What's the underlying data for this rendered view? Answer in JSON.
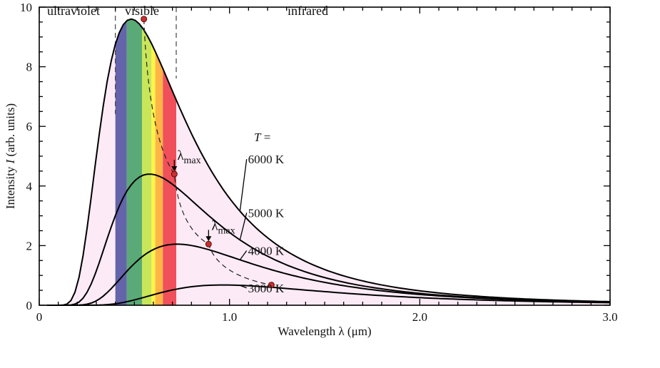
{
  "chart_data": {
    "type": "line",
    "title": "",
    "xlabel": "Wavelength  λ  (μm)",
    "ylabel_prefix": "Intensity  ",
    "ylabel_symbol": "I",
    "ylabel_suffix": "  (arb. units)",
    "xlim": [
      0,
      3.0
    ],
    "ylim": [
      0,
      10
    ],
    "x_ticks": [
      0,
      1.0,
      2.0,
      3.0
    ],
    "x_tick_labels": [
      "0",
      "1.0",
      "2.0",
      "3.0"
    ],
    "y_ticks": [
      0,
      2,
      4,
      6,
      8,
      10
    ],
    "y_tick_labels": [
      "0",
      "2",
      "4",
      "6",
      "8",
      "10"
    ],
    "x_minor_step": 0.1,
    "y_minor_step": 0.5,
    "regions": [
      {
        "label": "ultraviolet",
        "x_range": [
          0,
          0.4
        ]
      },
      {
        "label": "visible",
        "x_range": [
          0.4,
          0.7
        ]
      },
      {
        "label": "infrared",
        "x_range": [
          0.7,
          3.0
        ]
      }
    ],
    "visible_bands": [
      {
        "x_range": [
          0.4,
          0.46
        ],
        "color": "#6464aa"
      },
      {
        "x_range": [
          0.46,
          0.54
        ],
        "color": "#5aaa78"
      },
      {
        "x_range": [
          0.54,
          0.59
        ],
        "color": "#c8e65a"
      },
      {
        "x_range": [
          0.59,
          0.61
        ],
        "color": "#fff546"
      },
      {
        "x_range": [
          0.61,
          0.65
        ],
        "color": "#ffb446"
      },
      {
        "x_range": [
          0.65,
          0.72
        ],
        "color": "#f0505a"
      }
    ],
    "fill_color": "#fcebf6",
    "legend_title_symbol": "T",
    "legend_title_suffix": " =",
    "series": [
      {
        "name": "6000 K",
        "temperature_K": 6000,
        "peak": {
          "x": 0.55,
          "y": 9.6
        },
        "label_at": {
          "x": 1.09,
          "y": 4.9
        }
      },
      {
        "name": "5000 K",
        "temperature_K": 5000,
        "peak": {
          "x": 0.71,
          "y": 4.4
        },
        "label_at": {
          "x": 1.09,
          "y": 3.1
        }
      },
      {
        "name": "4000 K",
        "temperature_K": 4000,
        "peak": {
          "x": 0.89,
          "y": 2.05
        },
        "label_at": {
          "x": 1.09,
          "y": 1.83
        }
      },
      {
        "name": "3000 K",
        "temperature_K": 3000,
        "peak": {
          "x": 1.22,
          "y": 0.68
        },
        "label_at": {
          "x": 1.09,
          "y": 0.58
        }
      }
    ],
    "annotations": [
      {
        "base": "λ",
        "sub": "max",
        "points_to_peak": "5000 K"
      },
      {
        "base": "λ",
        "sub": "max",
        "points_to_peak": "4000 K"
      }
    ],
    "wien_locus": "dashed line through the peaks",
    "curve_points": 140
  }
}
